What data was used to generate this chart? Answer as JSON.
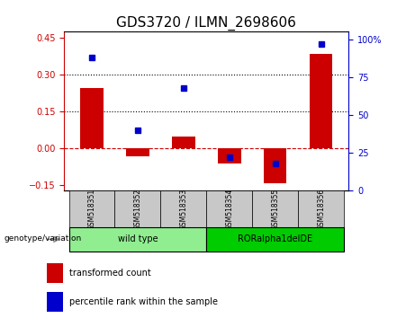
{
  "title": "GDS3720 / ILMN_2698606",
  "samples": [
    "GSM518351",
    "GSM518352",
    "GSM518353",
    "GSM518354",
    "GSM518355",
    "GSM518356"
  ],
  "transformed_count": [
    0.245,
    -0.035,
    0.045,
    -0.065,
    -0.145,
    0.385
  ],
  "percentile_rank": [
    88,
    40,
    68,
    22,
    18,
    97
  ],
  "ylim_left": [
    -0.175,
    0.475
  ],
  "ylim_right": [
    0,
    105
  ],
  "yticks_left": [
    -0.15,
    0.0,
    0.15,
    0.3,
    0.45
  ],
  "yticks_right": [
    0,
    25,
    50,
    75,
    100
  ],
  "hlines_dotted": [
    0.15,
    0.3
  ],
  "bar_color": "#cc0000",
  "dot_color": "#0000cc",
  "zero_line_color": "#cc0000",
  "hline_color": "#000000",
  "wt_bg": "#90ee90",
  "ror_bg": "#00cc00",
  "sample_bg": "#c8c8c8",
  "group_labels": [
    "wild type",
    "RORalpha1delDE"
  ],
  "legend_bar_label": "transformed count",
  "legend_dot_label": "percentile rank within the sample",
  "genotype_label": "genotype/variation",
  "title_fontsize": 11,
  "tick_fontsize": 7,
  "bar_width": 0.5
}
